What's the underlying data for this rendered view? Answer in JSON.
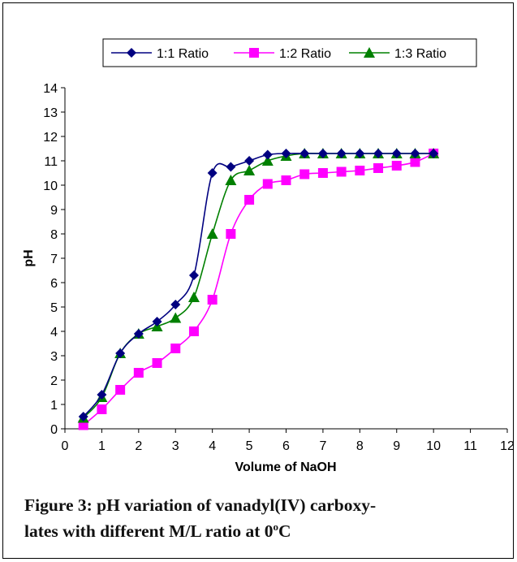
{
  "chart_data": {
    "type": "line",
    "x": [
      0.5,
      1,
      1.5,
      2,
      2.5,
      3,
      3.5,
      4,
      4.5,
      5,
      5.5,
      6,
      6.5,
      7,
      7.5,
      8,
      8.5,
      9,
      9.5,
      10
    ],
    "series": [
      {
        "name": "1:1 Ratio",
        "color": "#000080",
        "marker": "diamond",
        "values": [
          0.5,
          1.4,
          3.1,
          3.9,
          4.4,
          5.1,
          6.3,
          10.5,
          10.75,
          11.0,
          11.25,
          11.3,
          11.3,
          11.3,
          11.3,
          11.3,
          11.3,
          11.3,
          11.3,
          11.3
        ]
      },
      {
        "name": "1:2 Ratio",
        "color": "#ff00ff",
        "marker": "square",
        "values": [
          0.15,
          0.8,
          1.6,
          2.3,
          2.7,
          3.3,
          4.0,
          5.3,
          8.0,
          9.4,
          10.05,
          10.2,
          10.45,
          10.5,
          10.55,
          10.6,
          10.7,
          10.8,
          10.95,
          11.3
        ]
      },
      {
        "name": "1:3 Ratio",
        "color": "#008000",
        "marker": "triangle",
        "values": [
          0.45,
          1.3,
          3.1,
          3.9,
          4.2,
          4.55,
          5.4,
          8.0,
          10.2,
          10.6,
          11.0,
          11.2,
          11.3,
          11.3,
          11.3,
          11.3,
          11.3,
          11.3,
          11.3,
          11.3
        ]
      }
    ],
    "xlabel": "Volume of NaOH",
    "ylabel": "pH",
    "xlim": [
      0,
      12
    ],
    "ylim": [
      0,
      14
    ],
    "xticks": [
      0,
      1,
      2,
      3,
      4,
      5,
      6,
      7,
      8,
      9,
      10,
      11,
      12
    ],
    "yticks": [
      0,
      1,
      2,
      3,
      4,
      5,
      6,
      7,
      8,
      9,
      10,
      11,
      12,
      13,
      14
    ],
    "grid": false,
    "legend_position": "top"
  },
  "caption": {
    "line1": "Figure 3:  pH variation of vanadyl(IV) carboxy-",
    "line2_prefix": "lates with different M/L ratio at 0",
    "line2_sup": "o",
    "line2_suffix": "C"
  }
}
